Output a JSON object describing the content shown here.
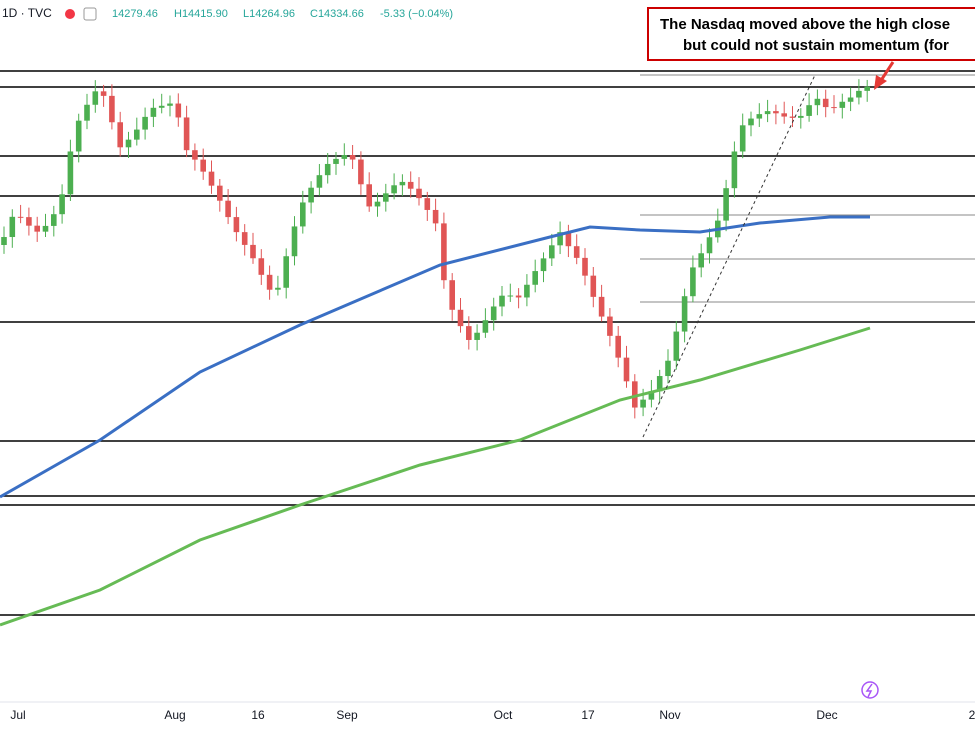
{
  "header": {
    "symbol": "1D · TVC",
    "open": "14279.46",
    "high": "H14415.90",
    "low": "L14264.96",
    "close": "C14334.66",
    "change": "-5.33 (−0.04%)"
  },
  "annotation": {
    "line1": "The Nasdaq moved above the high close",
    "line2": "but could not sustain momentum (for"
  },
  "x_axis": {
    "labels": [
      "Jul",
      "Aug",
      "16",
      "Sep",
      "Oct",
      "17",
      "Nov",
      "Dec",
      "2"
    ]
  }
}
